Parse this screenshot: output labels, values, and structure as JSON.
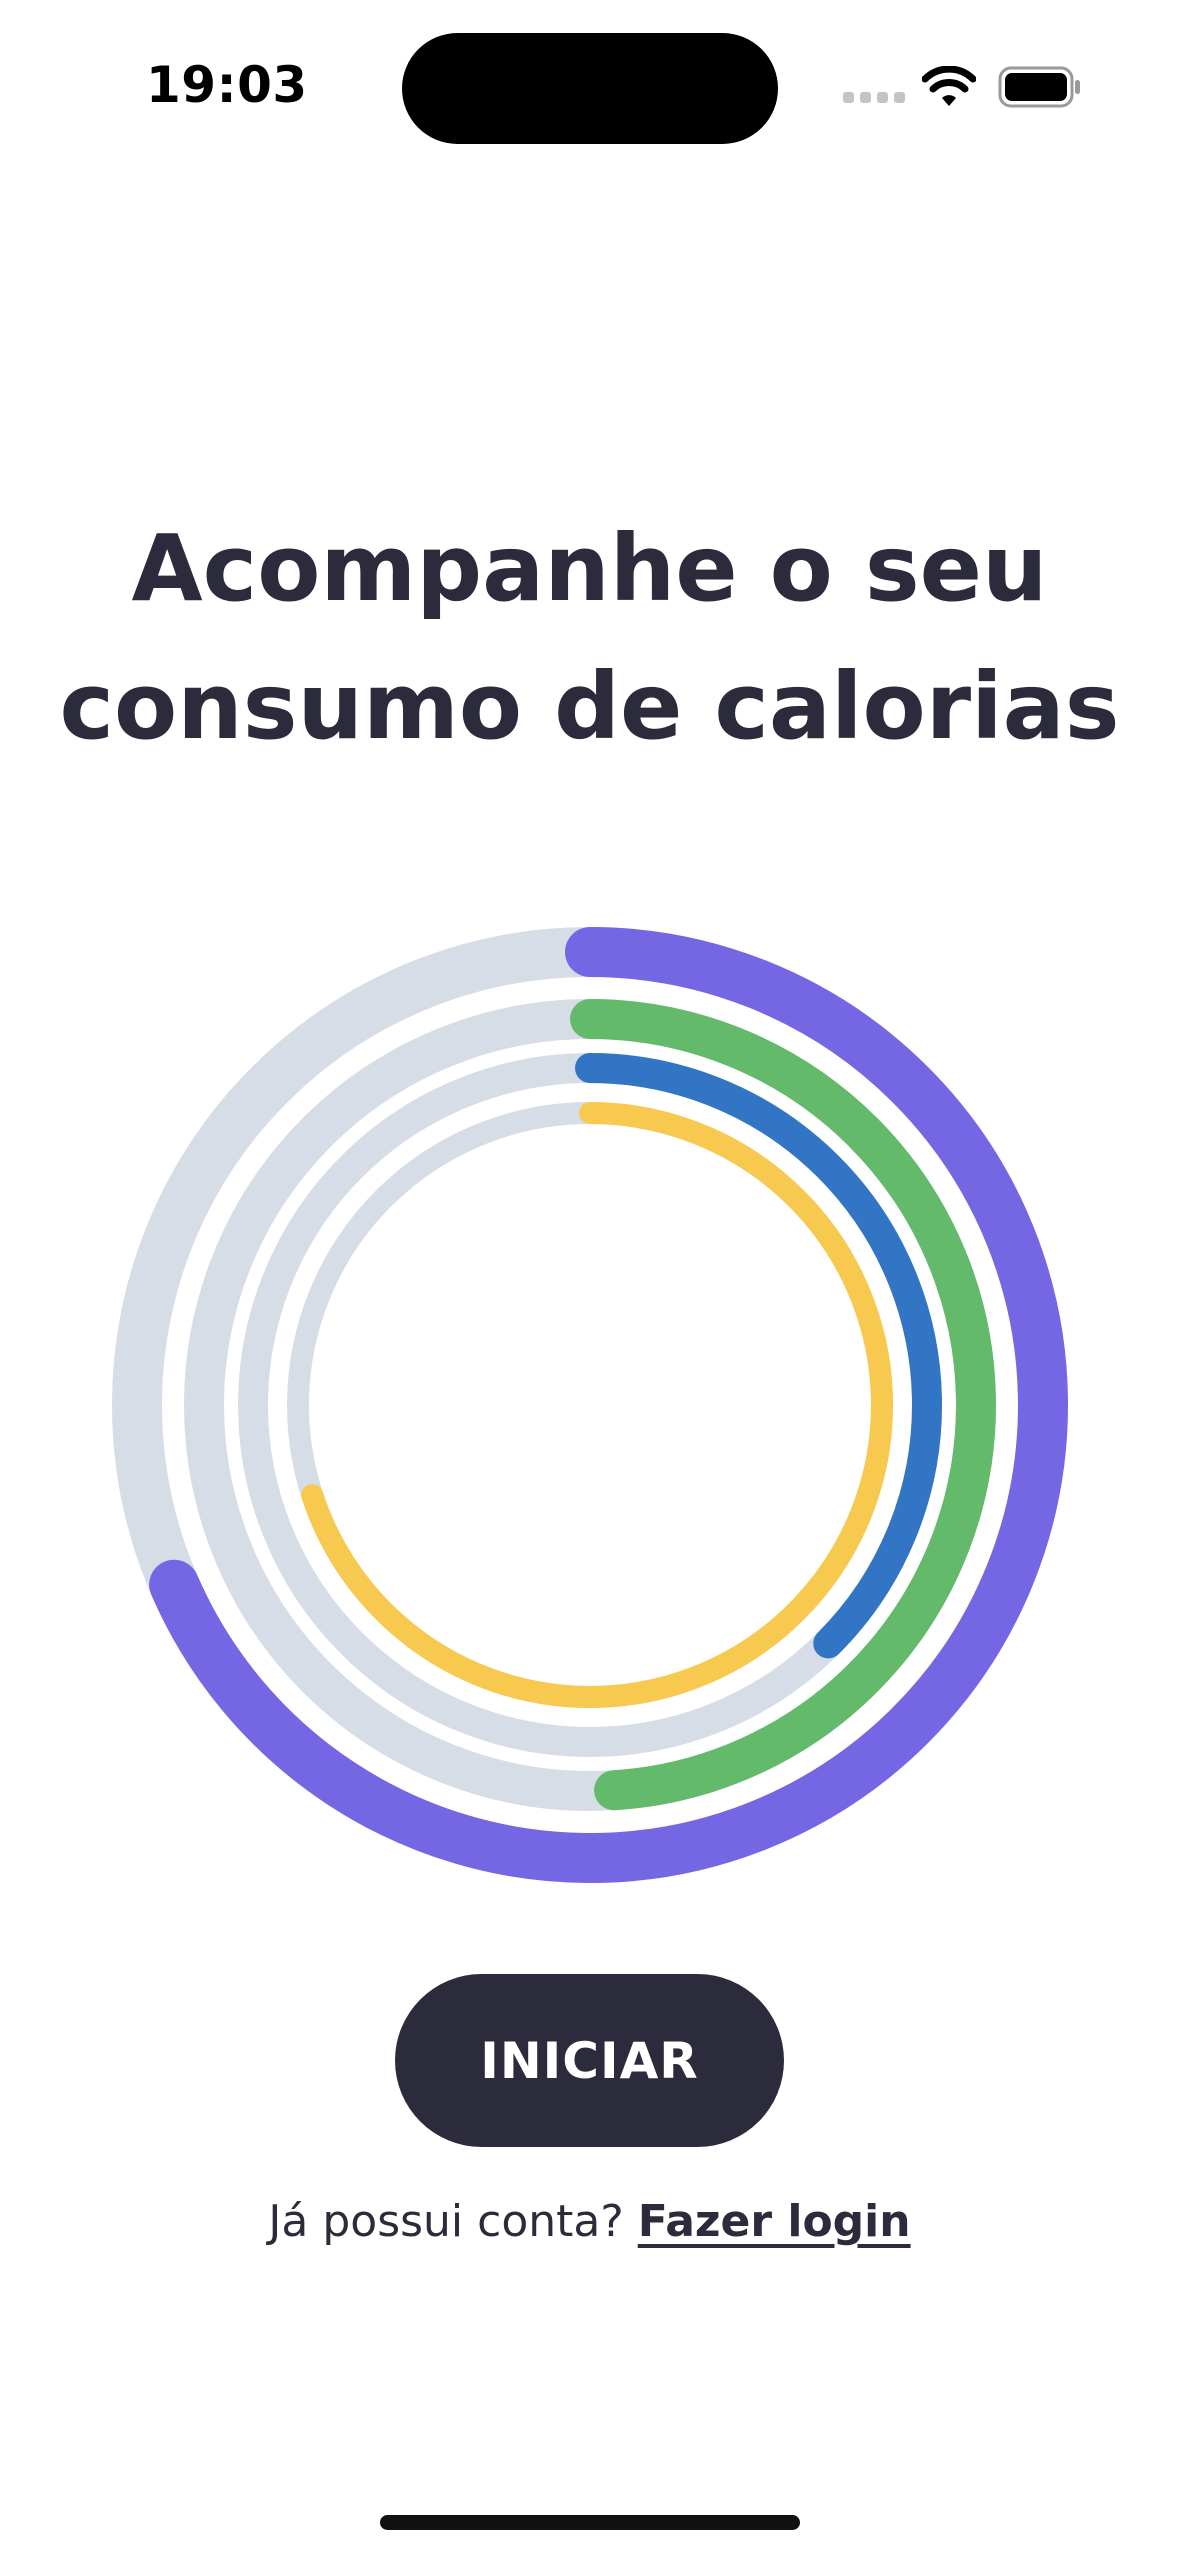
{
  "status_bar": {
    "time": "19:03",
    "signal_icon": "cellular-signal-icon",
    "wifi_icon": "wifi-icon",
    "battery_icon": "battery-full-icon"
  },
  "headline": {
    "line1": "Acompanhe o seu",
    "line2": "consumo de calorias"
  },
  "rings": {
    "track_color": "#d7dde7",
    "items": [
      {
        "name": "purple-ring",
        "color": "#7566e4",
        "progress": 0.685
      },
      {
        "name": "green-ring",
        "color": "#62ba6a",
        "progress": 0.49
      },
      {
        "name": "blue-ring",
        "color": "#3375c5",
        "progress": 0.375
      },
      {
        "name": "yellow-ring",
        "color": "#f8c94f",
        "progress": 0.7
      }
    ]
  },
  "cta": {
    "start_label": "INICIAR"
  },
  "login": {
    "prompt": "Já possui conta?",
    "link_label": "Fazer login"
  }
}
